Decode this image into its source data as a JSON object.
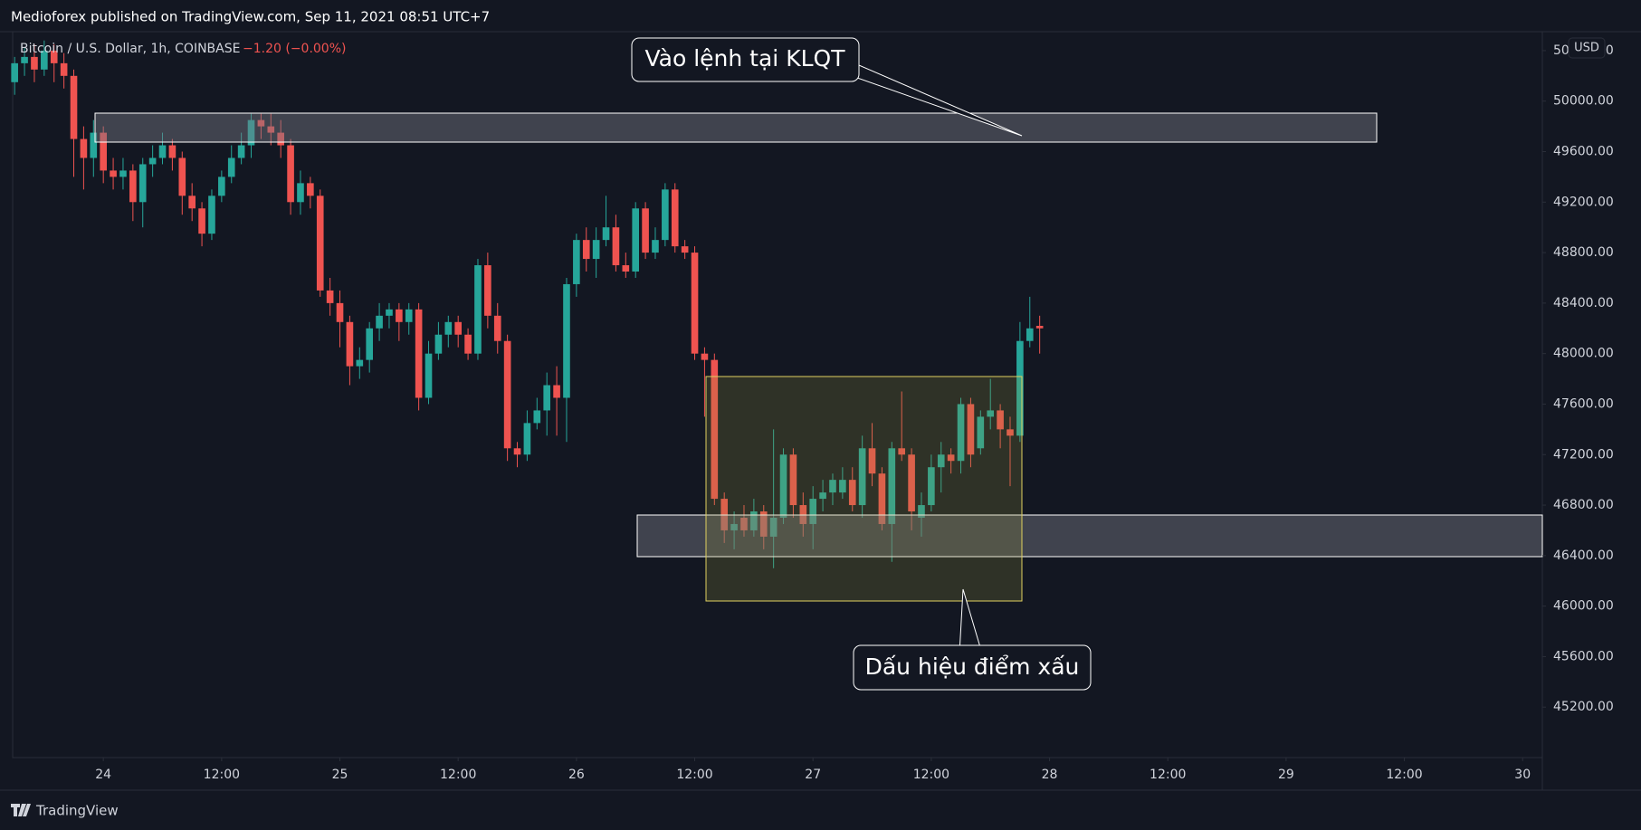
{
  "chart_data": {
    "type": "candlestick",
    "title": "Medioforex published on TradingView.com, Sep 11, 2021 08:51 UTC+7",
    "change": "−1.20 (−0.00%)",
    "currency": "USD",
    "footer": "TradingView",
    "annotations": [
      "Vào lệnh tại KLQT",
      "Dấu hiệu điểm xấu"
    ],
    "up_color": "#26a69a",
    "down_color": "#ef5350",
    "grid": false,
    "x": [
      -9,
      -8,
      -7,
      -6,
      -5,
      -4,
      -3,
      -2,
      -1,
      0,
      1,
      2,
      3,
      4,
      5,
      6,
      7,
      8,
      9,
      10,
      11,
      12,
      13,
      14,
      15,
      16,
      17,
      18,
      19,
      20,
      21,
      22,
      23,
      24,
      25,
      26,
      27,
      28,
      29,
      30,
      31,
      32,
      33,
      34,
      35,
      36,
      37,
      38,
      39,
      40,
      41,
      42,
      43,
      44,
      45,
      46,
      47,
      48,
      49,
      50,
      51,
      52,
      53,
      54,
      55,
      56,
      57,
      58,
      59,
      60,
      61,
      62,
      63,
      64,
      65,
      66,
      67,
      68,
      69,
      70,
      71,
      72,
      73,
      74,
      75,
      76,
      77,
      78,
      79,
      80,
      81,
      82,
      83,
      84,
      85,
      86,
      87,
      88,
      89,
      90,
      91,
      92,
      93,
      94,
      95
    ],
    "series": [
      {
        "name": "Bitcoin / U.S. Dollar, 1h, COINBASE",
        "open": [
          50150,
          50300,
          50350,
          50250,
          50400,
          50300,
          50200,
          49700,
          49550,
          49750,
          49450,
          49400,
          49450,
          49200,
          49500,
          49550,
          49650,
          49550,
          49250,
          49150,
          48950,
          49250,
          49400,
          49550,
          49650,
          49850,
          49800,
          49750,
          49650,
          49200,
          49350,
          49250,
          48500,
          48400,
          48250,
          47900,
          47950,
          48200,
          48300,
          48350,
          48250,
          48350,
          47650,
          48000,
          48150,
          48250,
          48150,
          48000,
          48700,
          48300,
          48100,
          47250,
          47200,
          47450,
          47550,
          47750,
          47650,
          48550,
          48900,
          48750,
          48900,
          49000,
          48700,
          48650,
          49150,
          48800,
          48900,
          49300,
          48850,
          48800,
          48000,
          47950,
          46850,
          46600,
          46700,
          46600,
          46750,
          46550,
          46700,
          47200,
          46800,
          46650,
          46850,
          46900,
          46900,
          47000,
          46800,
          47250,
          47050,
          46650,
          47250,
          47200,
          46700,
          46800,
          47100,
          47200,
          47150,
          47600,
          47250,
          47500,
          47550,
          47400,
          47350,
          48100,
          48220
        ],
        "high": [
          50350,
          50420,
          50450,
          50480,
          50450,
          50380,
          50250,
          49800,
          49850,
          49800,
          49550,
          49550,
          49500,
          49550,
          49650,
          49750,
          49700,
          49600,
          49350,
          49200,
          49300,
          49450,
          49650,
          49750,
          49900,
          49900,
          49900,
          49850,
          49700,
          49450,
          49400,
          49300,
          48600,
          48500,
          48300,
          48050,
          48250,
          48400,
          48400,
          48400,
          48400,
          48400,
          48100,
          48250,
          48300,
          48300,
          48200,
          48750,
          48800,
          48400,
          48150,
          47300,
          47550,
          47650,
          47850,
          47900,
          48600,
          48950,
          49000,
          49000,
          49250,
          49100,
          48800,
          49200,
          49200,
          49000,
          49350,
          49350,
          48900,
          48850,
          48050,
          48000,
          46900,
          46750,
          46800,
          46850,
          46800,
          47400,
          47250,
          47250,
          46900,
          46950,
          47000,
          47050,
          47100,
          47100,
          47350,
          47450,
          47100,
          47300,
          47700,
          47250,
          46900,
          47200,
          47300,
          47250,
          47650,
          47650,
          47550,
          47800,
          47600,
          47500,
          48250,
          48450,
          48300
        ],
        "low": [
          50050,
          50200,
          50150,
          50200,
          50150,
          50100,
          49400,
          49300,
          49400,
          49350,
          49300,
          49300,
          49050,
          49000,
          49400,
          49500,
          49450,
          49100,
          49050,
          48850,
          48900,
          49200,
          49350,
          49500,
          49550,
          49700,
          49650,
          49550,
          49100,
          49100,
          49150,
          48450,
          48300,
          48050,
          47750,
          47800,
          47850,
          48100,
          48200,
          48100,
          48150,
          47550,
          47600,
          47950,
          48050,
          48050,
          47950,
          47950,
          48200,
          48000,
          47150,
          47100,
          47150,
          47400,
          47350,
          47350,
          47300,
          48450,
          48650,
          48600,
          48850,
          48650,
          48600,
          48600,
          48750,
          48750,
          48850,
          48800,
          48750,
          47950,
          47500,
          46800,
          46500,
          46450,
          46550,
          46550,
          46450,
          46300,
          46650,
          46700,
          46550,
          46450,
          46750,
          46800,
          46850,
          46750,
          46700,
          46950,
          46600,
          46350,
          47150,
          46600,
          46550,
          46750,
          46900,
          47050,
          47050,
          47100,
          47200,
          47400,
          47250,
          46950,
          47300,
          48050,
          48000
        ],
        "close": [
          50300,
          50350,
          50250,
          50400,
          50300,
          50200,
          49700,
          49550,
          49750,
          49450,
          49400,
          49450,
          49200,
          49500,
          49550,
          49650,
          49550,
          49250,
          49150,
          48950,
          49250,
          49400,
          49550,
          49650,
          49850,
          49800,
          49750,
          49650,
          49200,
          49350,
          49250,
          48500,
          48400,
          48250,
          47900,
          47950,
          48200,
          48300,
          48350,
          48250,
          48350,
          47650,
          48000,
          48150,
          48250,
          48150,
          48000,
          48700,
          48300,
          48100,
          47250,
          47200,
          47450,
          47550,
          47750,
          47650,
          48550,
          48900,
          48750,
          48900,
          49000,
          48700,
          48650,
          49150,
          48800,
          48900,
          49300,
          48850,
          48800,
          48000,
          47950,
          46850,
          46600,
          46650,
          46600,
          46750,
          46550,
          46700,
          47200,
          46800,
          46650,
          46850,
          46900,
          47000,
          47000,
          46800,
          47250,
          47050,
          46650,
          47250,
          47200,
          46750,
          46800,
          47100,
          47200,
          47150,
          47600,
          47200,
          47500,
          47550,
          47400,
          47350,
          48100,
          48200,
          48200
        ]
      }
    ],
    "xlim": [
      -9.2,
      146
    ],
    "xticks": [
      {
        "value": 0,
        "label": "24"
      },
      {
        "value": 12,
        "label": "12:00"
      },
      {
        "value": 24,
        "label": "25"
      },
      {
        "value": 36,
        "label": "12:00"
      },
      {
        "value": 48,
        "label": "26"
      },
      {
        "value": 60,
        "label": "12:00"
      },
      {
        "value": 72,
        "label": "27"
      },
      {
        "value": 84,
        "label": "12:00"
      },
      {
        "value": 96,
        "label": "28"
      },
      {
        "value": 108,
        "label": "12:00"
      },
      {
        "value": 120,
        "label": "29"
      },
      {
        "value": 132,
        "label": "12:00"
      },
      {
        "value": 144,
        "label": "30"
      }
    ],
    "ylim": [
      44800,
      50550
    ],
    "yticks": [
      {
        "value": 45200,
        "label": "45200.00"
      },
      {
        "value": 45600,
        "label": "45600.00"
      },
      {
        "value": 46000,
        "label": "46000.00"
      },
      {
        "value": 46400,
        "label": "46400.00"
      },
      {
        "value": 46800,
        "label": "46800.00"
      },
      {
        "value": 47200,
        "label": "47200.00"
      },
      {
        "value": 47600,
        "label": "47600.00"
      },
      {
        "value": 48000,
        "label": "48000.00"
      },
      {
        "value": 48400,
        "label": "48400.00"
      },
      {
        "value": 48800,
        "label": "48800.00"
      },
      {
        "value": 49200,
        "label": "49200.00"
      },
      {
        "value": 49600,
        "label": "49600.00"
      },
      {
        "value": 50000,
        "label": "50000.00"
      },
      {
        "value": 50400,
        "label": "50400.00"
      }
    ]
  }
}
